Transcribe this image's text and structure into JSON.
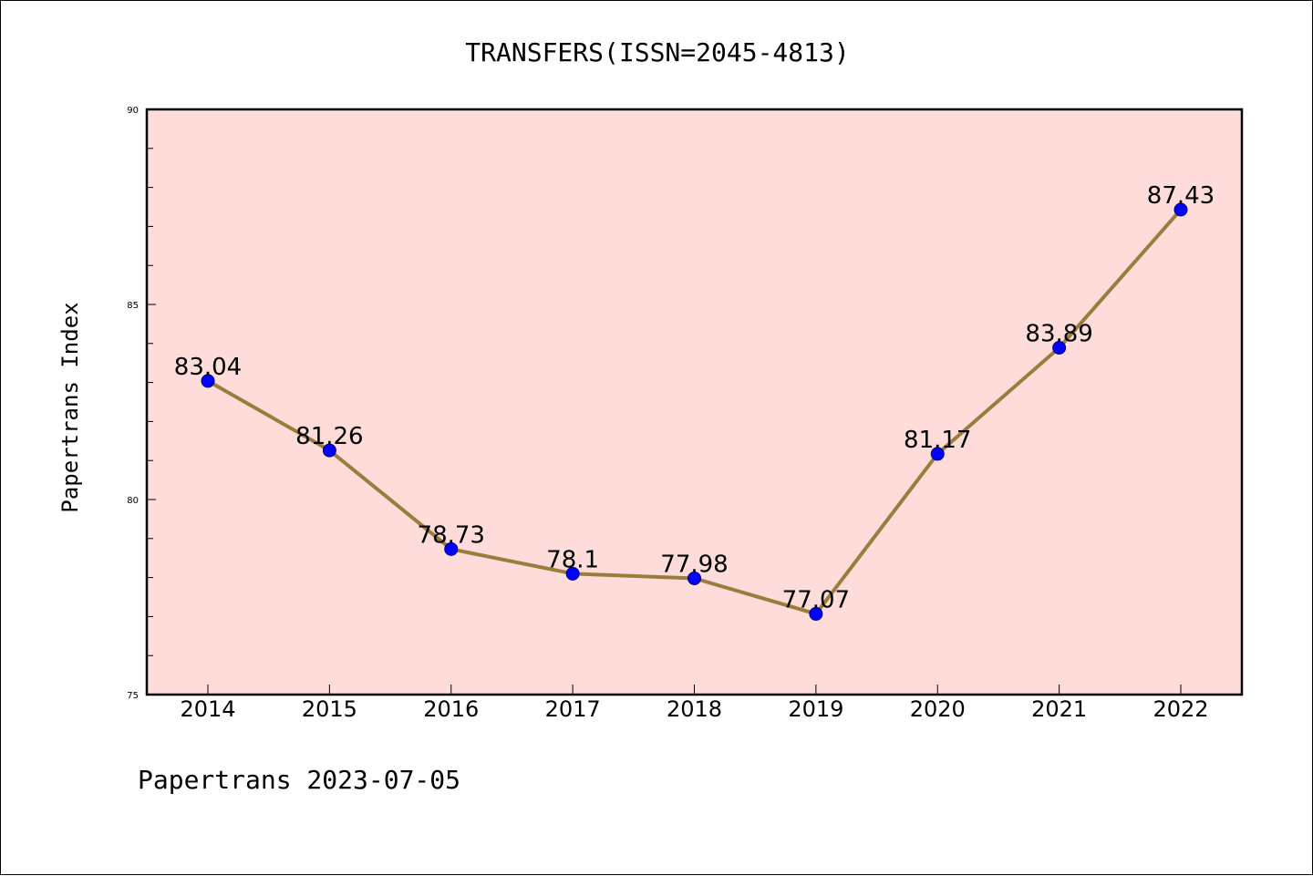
{
  "chart_data": {
    "type": "line",
    "title": "TRANSFERS(ISSN=2045-4813)",
    "xlabel": "",
    "ylabel": "Papertrans Index",
    "categories": [
      "2014",
      "2015",
      "2016",
      "2017",
      "2018",
      "2019",
      "2020",
      "2021",
      "2022"
    ],
    "series": [
      {
        "values": [
          83.04,
          81.26,
          78.73,
          78.1,
          77.98,
          77.07,
          81.17,
          83.89,
          87.43
        ],
        "labels": [
          "83.04",
          "81.26",
          "78.73",
          "78.1",
          "77.98",
          "77.07",
          "81.17",
          "83.89",
          "87.43"
        ]
      }
    ],
    "ylim": [
      75,
      90
    ],
    "yticks": [
      "75",
      "80",
      "85",
      "90"
    ],
    "grid": false,
    "footer": "Papertrans 2023-07-05",
    "colors": {
      "plot_background": "#fddcd9",
      "line": "#9a7d3c",
      "marker": "#0000ff",
      "marker_edge": "#000080",
      "axis": "#000000"
    }
  }
}
